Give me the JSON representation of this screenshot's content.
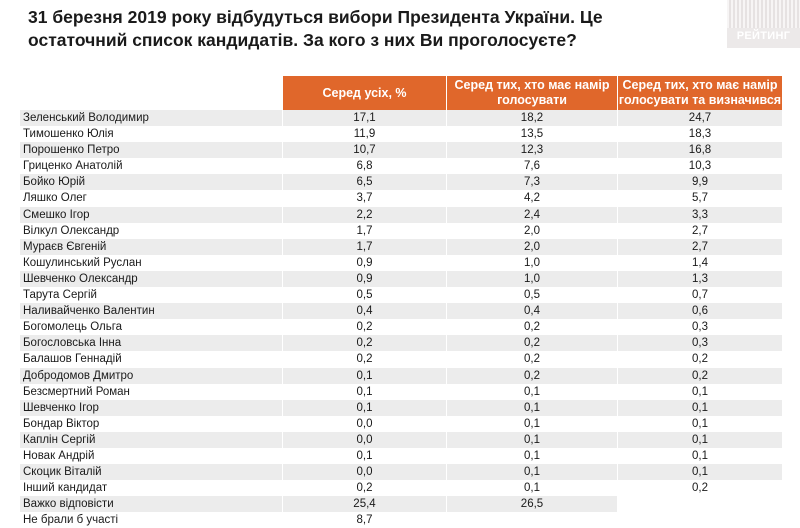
{
  "title": "31 березня 2019 року відбудуться вибори Президента України. Це остаточний список кандидатів. За кого з них Ви проголосуєте?",
  "logo_text": "РЕЙТИНГ",
  "columns": [
    "Серед усіх, %",
    "Серед тих, хто має намір голосувати",
    "Серед тих, хто має намір голосувати та визначився"
  ],
  "rows": [
    {
      "name": "Зеленський Володимир",
      "v1": "17,1",
      "v2": "18,2",
      "v3": "24,7"
    },
    {
      "name": "Тимошенко Юлія",
      "v1": "11,9",
      "v2": "13,5",
      "v3": "18,3"
    },
    {
      "name": "Порошенко Петро",
      "v1": "10,7",
      "v2": "12,3",
      "v3": "16,8"
    },
    {
      "name": "Гриценко Анатолій",
      "v1": "6,8",
      "v2": "7,6",
      "v3": "10,3"
    },
    {
      "name": "Бойко Юрій",
      "v1": "6,5",
      "v2": "7,3",
      "v3": "9,9"
    },
    {
      "name": "Ляшко Олег",
      "v1": "3,7",
      "v2": "4,2",
      "v3": "5,7"
    },
    {
      "name": "Смешко Ігор",
      "v1": "2,2",
      "v2": "2,4",
      "v3": "3,3"
    },
    {
      "name": "Вілкул Олександр",
      "v1": "1,7",
      "v2": "2,0",
      "v3": "2,7"
    },
    {
      "name": "Мураєв Євгеній",
      "v1": "1,7",
      "v2": "2,0",
      "v3": "2,7"
    },
    {
      "name": "Кошулинський Руслан",
      "v1": "0,9",
      "v2": "1,0",
      "v3": "1,4"
    },
    {
      "name": "Шевченко Олександр",
      "v1": "0,9",
      "v2": "1,0",
      "v3": "1,3"
    },
    {
      "name": "Тарута Сергій",
      "v1": "0,5",
      "v2": "0,5",
      "v3": "0,7"
    },
    {
      "name": "Наливайченко Валентин",
      "v1": "0,4",
      "v2": "0,4",
      "v3": "0,6"
    },
    {
      "name": "Богомолець Ольга",
      "v1": "0,2",
      "v2": "0,2",
      "v3": "0,3"
    },
    {
      "name": "Богословська Інна",
      "v1": "0,2",
      "v2": "0,2",
      "v3": "0,3"
    },
    {
      "name": "Балашов Геннадій",
      "v1": "0,2",
      "v2": "0,2",
      "v3": "0,2"
    },
    {
      "name": "Добродомов Дмитро",
      "v1": "0,1",
      "v2": "0,2",
      "v3": "0,2"
    },
    {
      "name": "Безсмертний Роман",
      "v1": "0,1",
      "v2": "0,1",
      "v3": "0,1"
    },
    {
      "name": "Шевченко Ігор",
      "v1": "0,1",
      "v2": "0,1",
      "v3": "0,1"
    },
    {
      "name": "Бондар Віктор",
      "v1": "0,0",
      "v2": "0,1",
      "v3": "0,1"
    },
    {
      "name": "Каплін Сергій",
      "v1": "0,0",
      "v2": "0,1",
      "v3": "0,1"
    },
    {
      "name": "Новак Андрій",
      "v1": "0,1",
      "v2": "0,1",
      "v3": "0,1"
    },
    {
      "name": "Скоцик Віталій",
      "v1": "0,0",
      "v2": "0,1",
      "v3": "0,1"
    },
    {
      "name": "Інший кандидат",
      "v1": "0,2",
      "v2": "0,1",
      "v3": "0,2"
    },
    {
      "name": "Важко відповісти",
      "v1": "25,4",
      "v2": "26,5",
      "v3": ""
    },
    {
      "name": "Не брали б участі",
      "v1": "8,7",
      "v2": "",
      "v3": ""
    }
  ]
}
